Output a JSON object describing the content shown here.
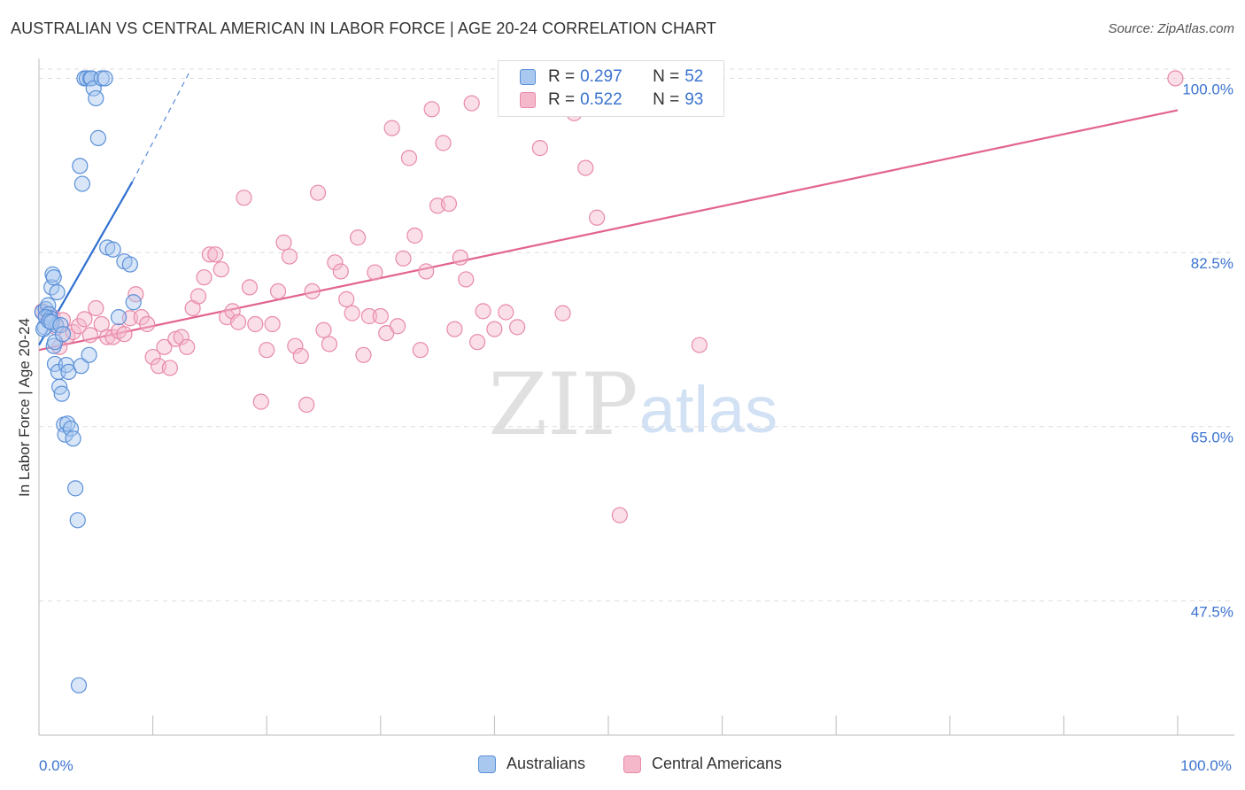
{
  "title": "AUSTRALIAN VS CENTRAL AMERICAN IN LABOR FORCE | AGE 20-24 CORRELATION CHART",
  "source": "Source: ZipAtlas.com",
  "watermark": {
    "zip": "ZIP",
    "atlas": "atlas"
  },
  "colors": {
    "blue_fill": "#a9c8ef",
    "blue_stroke": "#5b90d8",
    "blue_line": "#2f6fd0",
    "pink_fill": "#f5b8cb",
    "pink_stroke": "#e88aa8",
    "pink_line": "#e2638f",
    "tick_label": "#3b73d1",
    "grid": "#dddddd"
  },
  "legend_top": [
    {
      "r_label": "R = ",
      "r_value": "0.297",
      "n_label": "N = ",
      "n_value": "52",
      "color": "blue"
    },
    {
      "r_label": "R = ",
      "r_value": "0.522",
      "n_label": "N = ",
      "n_value": "93",
      "color": "pink"
    }
  ],
  "legend_bottom": [
    {
      "label": "Australians",
      "color": "blue"
    },
    {
      "label": "Central Americans",
      "color": "pink"
    }
  ],
  "chart_data": {
    "type": "scatter",
    "title": "AUSTRALIAN VS CENTRAL AMERICAN IN LABOR FORCE | AGE 20-24 CORRELATION CHART",
    "xlabel": "",
    "ylabel": "In Labor Force | Age 20-24",
    "xlim": [
      0,
      100
    ],
    "ylim": [
      34,
      102
    ],
    "x_tick_labels": [
      {
        "value": 0,
        "label": "0.0%"
      },
      {
        "value": 100,
        "label": "100.0%"
      }
    ],
    "y_tick_labels": [
      {
        "value": 100,
        "label": "100.0%"
      },
      {
        "value": 82.5,
        "label": "82.5%"
      },
      {
        "value": 65,
        "label": "65.0%"
      },
      {
        "value": 47.5,
        "label": "47.5%"
      }
    ],
    "grid": true,
    "legend_position": "top-center",
    "series": [
      {
        "name": "Australians",
        "color": "blue",
        "trendline": {
          "x": [
            0,
            8.2
          ],
          "y": [
            73.2,
            89.6
          ],
          "dashed_extension": {
            "x": [
              8.2,
              13.2
            ],
            "y": [
              89.6,
              100.6
            ]
          }
        },
        "x": [
          0.3,
          0.5,
          0.6,
          0.4,
          0.8,
          0.9,
          1.0,
          1.1,
          1.2,
          1.3,
          1.4,
          1.5,
          1.6,
          1.7,
          1.8,
          2.0,
          2.2,
          2.3,
          2.5,
          2.8,
          3.0,
          3.2,
          3.4,
          3.5,
          3.6,
          3.8,
          4.0,
          4.2,
          4.5,
          4.6,
          4.8,
          5.0,
          5.2,
          5.5,
          5.8,
          6.0,
          6.5,
          7.0,
          7.5,
          8.0,
          8.3,
          0.6,
          0.9,
          1.1,
          1.4,
          1.9,
          2.4,
          2.6,
          3.7,
          4.4,
          1.3,
          2.1
        ],
        "y": [
          76.5,
          75.0,
          76.8,
          74.8,
          77.2,
          76.3,
          75.9,
          79.0,
          80.3,
          73.1,
          71.3,
          75.2,
          78.5,
          70.5,
          69.0,
          68.3,
          65.2,
          64.2,
          65.3,
          64.8,
          63.8,
          58.8,
          55.6,
          39.0,
          91.2,
          89.4,
          100.0,
          100.0,
          100.0,
          100.0,
          99.0,
          98.0,
          94.0,
          100.0,
          100.0,
          83.0,
          82.8,
          76.0,
          81.6,
          81.3,
          77.5,
          76.0,
          75.6,
          75.5,
          73.5,
          75.2,
          71.2,
          70.5,
          71.1,
          72.2,
          80.0,
          74.3
        ]
      },
      {
        "name": "Central Americans",
        "color": "pink",
        "trendline": {
          "x": [
            0,
            100
          ],
          "y": [
            72.7,
            96.8
          ]
        },
        "x": [
          0.3,
          0.6,
          0.9,
          1.2,
          1.5,
          1.8,
          2.1,
          2.5,
          3.0,
          3.5,
          4.0,
          4.5,
          5.0,
          5.5,
          6.0,
          6.5,
          7.0,
          7.5,
          8.0,
          8.5,
          9.0,
          9.5,
          10.0,
          10.5,
          11.0,
          11.5,
          12.0,
          12.5,
          13.0,
          13.5,
          14.0,
          14.5,
          15.0,
          15.5,
          16.0,
          16.5,
          17.0,
          17.5,
          18.0,
          18.5,
          19.0,
          19.5,
          20.0,
          20.5,
          21.0,
          21.5,
          22.0,
          22.5,
          23.0,
          23.5,
          24.0,
          24.5,
          25.0,
          25.5,
          26.0,
          26.5,
          27.0,
          27.5,
          28.0,
          28.5,
          29.0,
          29.5,
          30.0,
          30.5,
          31.0,
          31.5,
          32.0,
          32.5,
          33.0,
          33.5,
          34.0,
          34.5,
          35.0,
          35.5,
          36.0,
          36.5,
          37.0,
          37.5,
          38.0,
          38.5,
          39.0,
          40.0,
          41.0,
          42.0,
          44.0,
          46.0,
          47.0,
          48.0,
          49.0,
          51.0,
          53.0,
          58.0,
          99.8
        ],
        "y": [
          76.6,
          76.3,
          75.9,
          76.0,
          75.0,
          73.0,
          75.7,
          74.1,
          74.5,
          75.1,
          75.8,
          74.2,
          76.9,
          75.3,
          74.0,
          74.0,
          74.6,
          74.3,
          75.9,
          78.3,
          76.0,
          75.3,
          72.0,
          71.1,
          73.0,
          70.9,
          73.8,
          74.0,
          73.0,
          76.9,
          78.1,
          80.0,
          82.3,
          82.3,
          80.8,
          76.0,
          76.6,
          75.5,
          88.0,
          79.0,
          75.3,
          67.5,
          72.7,
          75.3,
          78.6,
          83.5,
          82.1,
          73.1,
          72.1,
          67.2,
          78.6,
          88.5,
          74.7,
          73.3,
          81.5,
          80.6,
          77.8,
          76.4,
          84.0,
          72.2,
          76.1,
          80.5,
          76.1,
          74.4,
          95.0,
          75.1,
          81.9,
          92.0,
          84.2,
          72.7,
          80.6,
          96.9,
          87.2,
          93.5,
          87.4,
          74.8,
          82.0,
          79.8,
          97.5,
          73.5,
          76.6,
          74.8,
          76.5,
          75.0,
          93.0,
          76.4,
          96.5,
          91.0,
          86.0,
          56.1,
          100.0,
          73.2,
          100.0
        ]
      }
    ]
  }
}
